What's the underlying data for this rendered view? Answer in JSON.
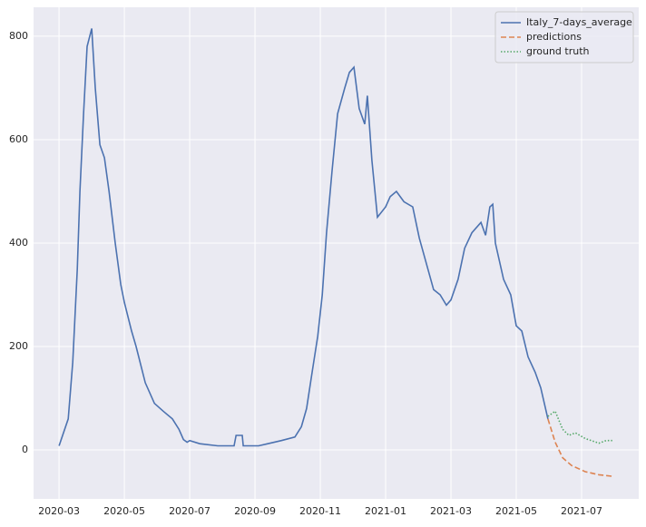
{
  "chart_data": {
    "type": "line",
    "xlim": [
      -0.78,
      17.75
    ],
    "ylim": [
      -94.7,
      856
    ],
    "xticks": [
      {
        "value": 0,
        "label": "2020-03"
      },
      {
        "value": 2,
        "label": "2020-05"
      },
      {
        "value": 4,
        "label": "2020-07"
      },
      {
        "value": 6,
        "label": "2020-09"
      },
      {
        "value": 8,
        "label": "2020-11"
      },
      {
        "value": 10,
        "label": "2021-01"
      },
      {
        "value": 12,
        "label": "2021-03"
      },
      {
        "value": 14,
        "label": "2021-05"
      },
      {
        "value": 16,
        "label": "2021-07"
      }
    ],
    "yticks": [
      0,
      200,
      400,
      600,
      800
    ],
    "grid": true,
    "legend": "upper right",
    "series": [
      {
        "name": "Italy_7-days_average",
        "color": "#4c72b0",
        "style": "solid",
        "x": [
          0,
          0.28,
          0.42,
          0.56,
          0.64,
          0.75,
          0.86,
          1.0,
          1.11,
          1.25,
          1.39,
          1.53,
          1.72,
          1.89,
          2.0,
          2.22,
          2.36,
          2.64,
          2.92,
          3.19,
          3.47,
          3.67,
          3.81,
          3.92,
          4.0,
          4.31,
          4.86,
          5.36,
          5.42,
          5.61,
          5.64,
          6.11,
          6.39,
          6.81,
          7.22,
          7.42,
          7.58,
          7.75,
          7.92,
          8.06,
          8.19,
          8.36,
          8.53,
          8.75,
          8.89,
          9.03,
          9.19,
          9.36,
          9.44,
          9.58,
          9.75,
          10.0,
          10.14,
          10.33,
          10.56,
          10.83,
          11.03,
          11.25,
          11.47,
          11.67,
          11.86,
          12.0,
          12.22,
          12.42,
          12.64,
          12.92,
          13.06,
          13.19,
          13.28,
          13.36,
          13.61,
          13.83,
          14.0,
          14.17,
          14.36,
          14.58,
          14.75,
          14.97
        ],
        "values": [
          8,
          60,
          170,
          350,
          500,
          650,
          780,
          815,
          700,
          590,
          565,
          500,
          400,
          320,
          285,
          230,
          200,
          130,
          90,
          75,
          60,
          40,
          20,
          15,
          18,
          12,
          8,
          8,
          28,
          28,
          8,
          8,
          12,
          18,
          25,
          45,
          80,
          150,
          220,
          300,
          420,
          540,
          650,
          700,
          730,
          740,
          660,
          630,
          685,
          560,
          450,
          470,
          490,
          500,
          480,
          470,
          410,
          360,
          310,
          300,
          280,
          290,
          330,
          390,
          420,
          440,
          415,
          470,
          475,
          400,
          330,
          300,
          240,
          230,
          180,
          150,
          120,
          60
        ]
      },
      {
        "name": "predictions",
        "color": "#dd8452",
        "style": "dashed",
        "x": [
          14.97,
          15.19,
          15.42,
          15.69,
          16.11,
          16.53,
          16.94
        ],
        "values": [
          60,
          15,
          -15,
          -30,
          -42,
          -48,
          -51
        ]
      },
      {
        "name": "ground truth",
        "color": "#55a868",
        "style": "dotted",
        "x": [
          14.97,
          15.19,
          15.42,
          15.61,
          15.81,
          16.11,
          16.53,
          16.75,
          16.94
        ],
        "values": [
          65,
          75,
          40,
          28,
          33,
          22,
          13,
          18,
          18
        ]
      }
    ]
  }
}
